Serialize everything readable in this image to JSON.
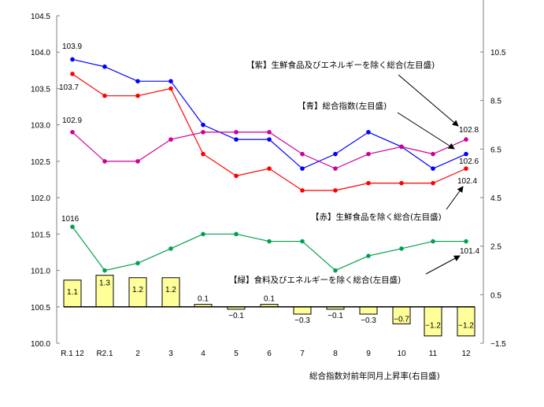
{
  "chart_data": {
    "type": "line+bar",
    "title": "",
    "categories": [
      "R.1 12",
      "R2.1",
      "2",
      "3",
      "4",
      "5",
      "6",
      "7",
      "8",
      "9",
      "10",
      "11",
      "12"
    ],
    "left_axis": {
      "label": "左目盛",
      "ylim": [
        100.0,
        104.5
      ],
      "ticks": [
        "100.0",
        "100.5",
        "101.0",
        "101.5",
        "102.0",
        "102.5",
        "103.0",
        "103.5",
        "104.0",
        "104.5"
      ]
    },
    "right_axis": {
      "label": "右目盛",
      "ylim": [
        -1.5,
        11.5
      ],
      "ticks": [
        "-1.5",
        "0.5",
        "2.5",
        "4.5",
        "6.5",
        "8.5",
        "10.5"
      ]
    },
    "series": [
      {
        "name": "【青】総合指数(左目盛)",
        "type": "line",
        "axis": "left",
        "color": "#0000ff",
        "values": [
          103.9,
          103.8,
          103.6,
          103.6,
          103.0,
          102.8,
          102.8,
          102.4,
          102.6,
          102.9,
          102.7,
          102.4,
          102.6
        ]
      },
      {
        "name": "【赤】生鮮食品を除く総合(左目盛)",
        "type": "line",
        "axis": "left",
        "color": "#ff0000",
        "values": [
          103.7,
          103.4,
          103.4,
          103.5,
          102.6,
          102.3,
          102.4,
          102.1,
          102.1,
          102.2,
          102.2,
          102.2,
          102.4
        ]
      },
      {
        "name": "【紫】生鮮食品及びエネルギーを除く総合(左目盛)",
        "type": "line",
        "axis": "left",
        "color": "#cc0099",
        "values": [
          102.9,
          102.5,
          102.5,
          102.8,
          102.9,
          102.9,
          102.9,
          102.6,
          102.4,
          102.6,
          102.7,
          102.6,
          102.8
        ]
      },
      {
        "name": "【緑】食料及びエネルギーを除く総合(左目盛)",
        "type": "line",
        "axis": "left",
        "color": "#00a050",
        "values": [
          101.6,
          101.0,
          101.1,
          101.3,
          101.5,
          101.5,
          101.4,
          101.4,
          101.0,
          101.2,
          101.3,
          101.4,
          101.4
        ]
      },
      {
        "name": "総合指数対前年同月上昇率(右目盛)",
        "type": "bar",
        "axis": "right",
        "color": "#ffff99",
        "values": [
          1.1,
          1.3,
          1.2,
          1.2,
          0.1,
          -0.1,
          0.1,
          -0.3,
          -0.1,
          -0.3,
          -0.7,
          -1.2,
          -1.2
        ]
      }
    ],
    "annotations": {
      "start_labels": {
        "blue": "103.9",
        "red": "103.7",
        "purple": "102.9",
        "green": "101.6"
      },
      "end_labels": {
        "purple": "102.8",
        "blue": "102.6",
        "red": "102.4",
        "green": "101.4"
      }
    },
    "bar_labels": [
      "1.1",
      "1.3",
      "1.2",
      "1.2",
      "0.1",
      "−0.1",
      "0.1",
      "−0.3",
      "−0.1",
      "−0.3",
      "−0.7",
      "−1.2",
      "−1.2"
    ],
    "xlabel": "総合指数対前年同月上昇率(右目盛)",
    "grid": false,
    "legend_position": "inline annotations"
  },
  "labels": {
    "purple": "【紫】生鮮食品及びエネルギーを除く総合(左目盛)",
    "blue": "【青】総合指数(左目盛)",
    "red": "【赤】生鮮食品を除く総合(左目盛)",
    "green": "【緑】食料及びエネルギーを除く総合(左目盛)",
    "bar_caption": "総合指数対前年同月上昇率(右目盛)"
  }
}
